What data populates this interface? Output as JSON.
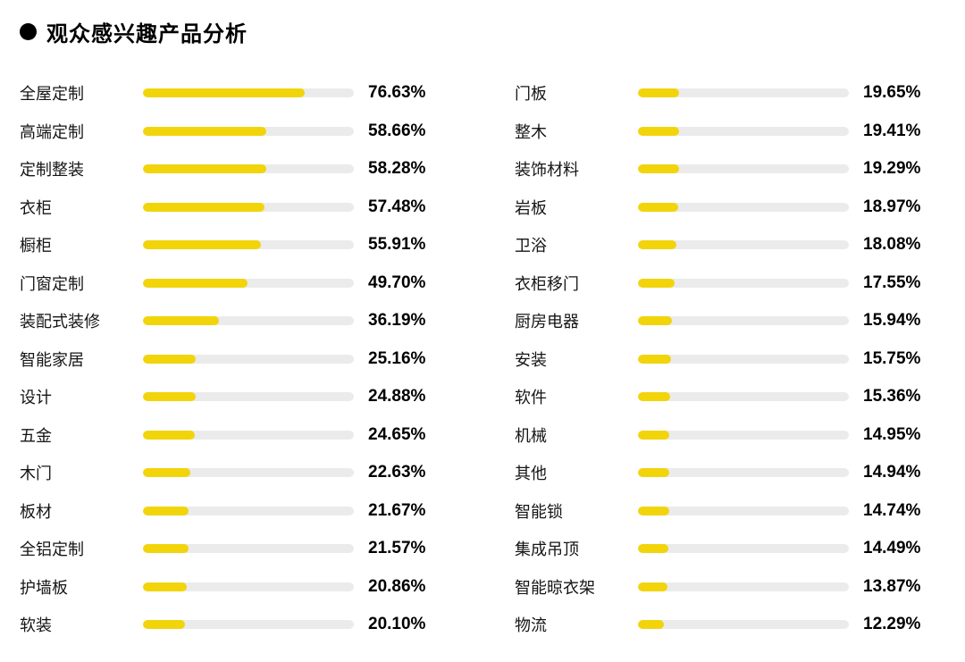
{
  "header": {
    "title": "观众感兴趣产品分析"
  },
  "colors": {
    "bar": "#F2D40B",
    "track": "#EBEBEB",
    "bullet": "#000000"
  },
  "chart_data": {
    "type": "bar",
    "orientation": "horizontal",
    "title": "观众感兴趣产品分析",
    "value_unit": "%",
    "axis_max": 100,
    "grid": false,
    "legend": false,
    "columns": [
      {
        "name": "left",
        "items": [
          {
            "label": "全屋定制",
            "value": 76.63,
            "percent": "76.63%"
          },
          {
            "label": "高端定制",
            "value": 58.66,
            "percent": "58.66%"
          },
          {
            "label": "定制整装",
            "value": 58.28,
            "percent": "58.28%"
          },
          {
            "label": "衣柜",
            "value": 57.48,
            "percent": "57.48%"
          },
          {
            "label": "橱柜",
            "value": 55.91,
            "percent": "55.91%"
          },
          {
            "label": "门窗定制",
            "value": 49.7,
            "percent": "49.70%"
          },
          {
            "label": "装配式装修",
            "value": 36.19,
            "percent": "36.19%"
          },
          {
            "label": "智能家居",
            "value": 25.16,
            "percent": "25.16%"
          },
          {
            "label": "设计",
            "value": 24.88,
            "percent": "24.88%"
          },
          {
            "label": "五金",
            "value": 24.65,
            "percent": "24.65%"
          },
          {
            "label": "木门",
            "value": 22.63,
            "percent": "22.63%"
          },
          {
            "label": "板材",
            "value": 21.67,
            "percent": "21.67%"
          },
          {
            "label": "全铝定制",
            "value": 21.57,
            "percent": "21.57%"
          },
          {
            "label": "护墙板",
            "value": 20.86,
            "percent": "20.86%"
          },
          {
            "label": "软装",
            "value": 20.1,
            "percent": "20.10%"
          }
        ]
      },
      {
        "name": "right",
        "items": [
          {
            "label": "门板",
            "value": 19.65,
            "percent": "19.65%"
          },
          {
            "label": "整木",
            "value": 19.41,
            "percent": "19.41%"
          },
          {
            "label": "装饰材料",
            "value": 19.29,
            "percent": "19.29%"
          },
          {
            "label": "岩板",
            "value": 18.97,
            "percent": "18.97%"
          },
          {
            "label": "卫浴",
            "value": 18.08,
            "percent": "18.08%"
          },
          {
            "label": "衣柜移门",
            "value": 17.55,
            "percent": "17.55%"
          },
          {
            "label": "厨房电器",
            "value": 15.94,
            "percent": "15.94%"
          },
          {
            "label": "安装",
            "value": 15.75,
            "percent": "15.75%"
          },
          {
            "label": "软件",
            "value": 15.36,
            "percent": "15.36%"
          },
          {
            "label": "机械",
            "value": 14.95,
            "percent": "14.95%"
          },
          {
            "label": "其他",
            "value": 14.94,
            "percent": "14.94%"
          },
          {
            "label": "智能锁",
            "value": 14.74,
            "percent": "14.74%"
          },
          {
            "label": "集成吊顶",
            "value": 14.49,
            "percent": "14.49%"
          },
          {
            "label": "智能晾衣架",
            "value": 13.87,
            "percent": "13.87%"
          },
          {
            "label": "物流",
            "value": 12.29,
            "percent": "12.29%"
          }
        ]
      }
    ]
  }
}
